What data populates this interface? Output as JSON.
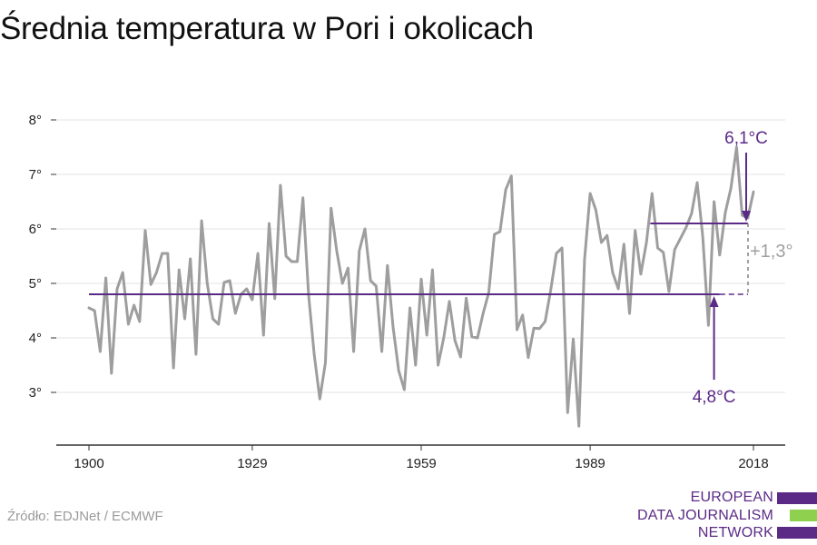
{
  "title": "Średnia temperatura w Pori i okolicach",
  "source": "Źródło: EDJNet / ECMWF",
  "logo": {
    "lines": [
      "EUROPEAN",
      "DATA JOURNALISM",
      "NETWORK"
    ],
    "colors": [
      "#5b2a86",
      "#8fd14f",
      "#5b2a86"
    ]
  },
  "colors": {
    "series": "#9e9e9e",
    "baseline": "#5b2a86",
    "recent": "#5b2a86",
    "annotation": "#5b2a86",
    "diff": "#a0a0a0",
    "axis": "#333333",
    "grid": "#e3e3e3"
  },
  "chart_data": {
    "type": "line",
    "title": "Średnia temperatura w Pori i okolicach",
    "xlabel": "",
    "ylabel": "",
    "xlim": [
      1897.5,
      2019.5
    ],
    "ylim": [
      2.1,
      8.3
    ],
    "x_ticks": [
      1900,
      1929,
      1959,
      1989,
      2018
    ],
    "x_tick_labels": [
      "1900",
      "1929",
      "1959",
      "1989",
      "2018"
    ],
    "y_ticks": [
      3,
      4,
      5,
      6,
      7,
      8
    ],
    "y_tick_labels": [
      "3°",
      "4°",
      "5°",
      "6°",
      "7°",
      "8°"
    ],
    "grid": true,
    "series": [
      {
        "x": [
          1900,
          1901,
          1902,
          1903,
          1904,
          1905,
          1906,
          1907,
          1908,
          1909,
          1910,
          1911,
          1912,
          1913,
          1914,
          1915,
          1916,
          1917,
          1918,
          1919,
          1920,
          1921,
          1922,
          1923,
          1924,
          1925,
          1926,
          1927,
          1928,
          1929,
          1930,
          1931,
          1932,
          1933,
          1934,
          1935,
          1936,
          1937,
          1938,
          1939,
          1940,
          1941,
          1942,
          1943,
          1944,
          1945,
          1946,
          1947,
          1948,
          1949,
          1950,
          1951,
          1952,
          1953,
          1954,
          1955,
          1956,
          1957,
          1958,
          1959,
          1960,
          1961,
          1962,
          1963,
          1964,
          1965,
          1966,
          1967,
          1968,
          1969,
          1970,
          1971,
          1972,
          1973,
          1974,
          1975,
          1976,
          1977,
          1978,
          1979,
          1980,
          1981,
          1982,
          1983,
          1984,
          1985,
          1986,
          1987,
          1988,
          1989,
          1990,
          1991,
          1992,
          1993,
          1994,
          1995,
          1996,
          1997,
          1998,
          1999,
          2000,
          2001,
          2002,
          2003,
          2004,
          2005,
          2006,
          2007,
          2008,
          2009,
          2010,
          2011,
          2012,
          2013,
          2014,
          2015,
          2016,
          2017,
          2018
        ],
        "values": [
          4.55,
          4.5,
          3.75,
          5.1,
          3.35,
          4.9,
          5.2,
          4.25,
          4.6,
          4.3,
          5.97,
          4.98,
          5.2,
          5.55,
          5.55,
          3.45,
          5.25,
          4.35,
          5.45,
          3.7,
          6.15,
          5.0,
          4.35,
          4.25,
          5.02,
          5.05,
          4.45,
          4.8,
          4.9,
          4.7,
          5.55,
          4.05,
          6.1,
          4.72,
          6.8,
          5.5,
          5.4,
          5.4,
          6.57,
          4.8,
          3.7,
          2.88,
          3.55,
          6.38,
          5.6,
          5.0,
          5.28,
          3.75,
          5.6,
          6.0,
          5.05,
          4.95,
          3.75,
          5.33,
          4.2,
          3.4,
          3.05,
          4.55,
          3.5,
          5.08,
          4.05,
          5.25,
          3.5,
          4.0,
          4.67,
          3.95,
          3.65,
          4.73,
          4.02,
          4.0,
          4.45,
          4.83,
          5.9,
          5.95,
          6.72,
          6.97,
          4.15,
          4.42,
          3.64,
          4.18,
          4.17,
          4.3,
          4.88,
          5.55,
          5.65,
          2.63,
          3.98,
          2.38,
          5.43,
          6.65,
          6.35,
          5.75,
          5.88,
          5.2,
          4.9,
          5.72,
          4.45,
          5.97,
          5.17,
          5.75,
          6.65,
          5.65,
          5.57,
          4.85,
          5.62,
          5.82,
          6.02,
          6.28,
          6.85,
          5.85,
          4.23,
          6.5,
          5.52,
          6.3,
          6.75,
          7.5,
          6.25,
          6.2,
          6.68
        ]
      }
    ],
    "reference_lines": [
      {
        "value": 4.8,
        "x_from": 1900,
        "x_to": 2012,
        "dashed_to": 2018
      },
      {
        "value": 6.1,
        "x_from": 2000,
        "x_to": 2018
      }
    ],
    "annotations": [
      {
        "text": "6,1°C",
        "x": 2017,
        "y": 7.75
      },
      {
        "text": "4,8°C",
        "x": 2011,
        "y": 2.95
      },
      {
        "text": "+1,3°",
        "x": 2018.5,
        "y": 5.45
      }
    ]
  }
}
